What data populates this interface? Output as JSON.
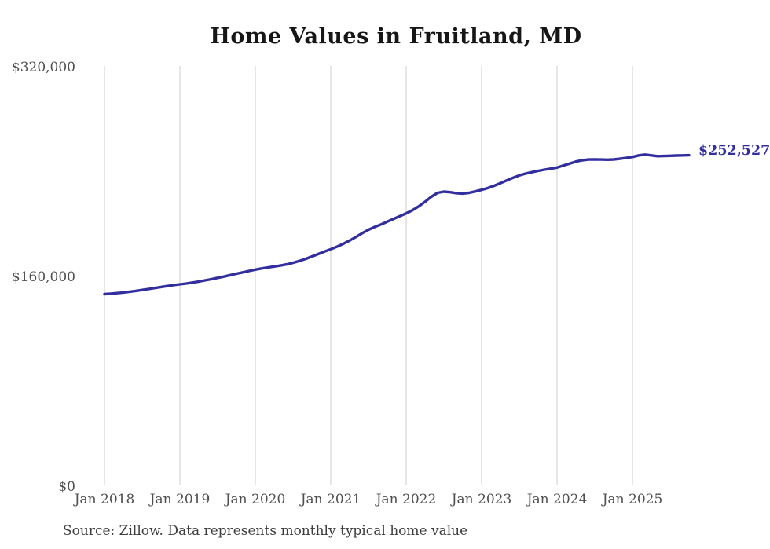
{
  "chart": {
    "title": "Home Values in Fruitland, MD",
    "source_note": "Source: Zillow. Data represents monthly typical home value",
    "end_label": "$252,527",
    "colors": {
      "line": "#322e9e",
      "grid": "#cccccc",
      "axis_text": "#4f4f4f",
      "title_text": "#161616",
      "source_text": "#3d3d3d",
      "end_label_text": "#322e9e",
      "background": "#ffffff"
    }
  },
  "chart_data": {
    "type": "line",
    "title": "Home Values in Fruitland, MD",
    "xlabel": "",
    "ylabel": "",
    "ylim": [
      0,
      320000
    ],
    "y_tick_values": [
      0,
      160000,
      320000
    ],
    "y_tick_labels": [
      "$0",
      "$160,000",
      "$320,000"
    ],
    "x_tick_labels": [
      "Jan 2018",
      "Jan 2019",
      "Jan 2020",
      "Jan 2021",
      "Jan 2022",
      "Jan 2023",
      "Jan 2024",
      "Jan 2025"
    ],
    "x_start_month": "2018-01",
    "x_end_month": "2025-10",
    "months_per_tick": 12,
    "grid": "vertical-only",
    "legend": "none",
    "annotation_last_value": "$252,527",
    "series": [
      {
        "name": "Monthly typical home value",
        "final_value": 252527,
        "values": [
          146500,
          146900,
          147300,
          147800,
          148400,
          149000,
          149700,
          150400,
          151200,
          152000,
          152700,
          153400,
          154000,
          154600,
          155300,
          156100,
          157000,
          157900,
          158900,
          159900,
          161000,
          162100,
          163100,
          164200,
          165200,
          166100,
          166900,
          167600,
          168300,
          169200,
          170400,
          171800,
          173400,
          175200,
          177100,
          179000,
          180800,
          182700,
          184900,
          187400,
          190100,
          193000,
          195600,
          197800,
          199700,
          201800,
          203900,
          206000,
          208100,
          210500,
          213500,
          217000,
          220800,
          223800,
          224700,
          224300,
          223600,
          223300,
          223800,
          224900,
          226100,
          227500,
          229200,
          231200,
          233300,
          235300,
          237100,
          238500,
          239600,
          240600,
          241500,
          242300,
          243100,
          244600,
          246200,
          247700,
          248700,
          249200,
          249300,
          249200,
          249100,
          249300,
          249800,
          250500,
          251200,
          252400,
          253000,
          252400,
          251800,
          251900,
          252100,
          252300,
          252400,
          252527
        ]
      }
    ]
  }
}
